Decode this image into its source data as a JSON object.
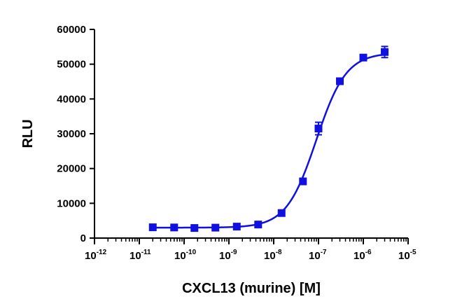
{
  "chart_data": {
    "type": "scatter",
    "xlabel": "CXCL13 (murine) [M]",
    "ylabel": "RLU",
    "xscale": "log",
    "xlim": [
      1e-12,
      1e-05
    ],
    "ylim": [
      0,
      60000
    ],
    "grid": false,
    "legend": "none",
    "color": "#1010e0",
    "x_ticks": [
      {
        "base": "10",
        "exp": "-12",
        "value": 1e-12
      },
      {
        "base": "10",
        "exp": "-11",
        "value": 1e-11
      },
      {
        "base": "10",
        "exp": "-10",
        "value": 1e-10
      },
      {
        "base": "10",
        "exp": "-9",
        "value": 1e-09
      },
      {
        "base": "10",
        "exp": "-8",
        "value": 1e-08
      },
      {
        "base": "10",
        "exp": "-7",
        "value": 1e-07
      },
      {
        "base": "10",
        "exp": "-6",
        "value": 1e-06
      },
      {
        "base": "10",
        "exp": "-5",
        "value": 1e-05
      }
    ],
    "y_ticks": [
      "0",
      "10000",
      "20000",
      "30000",
      "40000",
      "50000",
      "60000"
    ],
    "series": [
      {
        "x": [
          2e-11,
          6e-11,
          1.7e-10,
          5e-10,
          1.5e-09,
          4.5e-09,
          1.5e-08,
          4.5e-08,
          1e-07,
          3e-07,
          1e-06,
          3e-06
        ],
        "y": [
          3100,
          3050,
          2900,
          3000,
          3300,
          3900,
          7200,
          16300,
          31500,
          45100,
          51900,
          53500
        ],
        "error": [
          500,
          400,
          300,
          400,
          400,
          500,
          800,
          800,
          1800,
          600,
          800,
          1600
        ]
      }
    ],
    "fit_curve": {
      "model": "4-parameter logistic",
      "bottom": 3000,
      "top": 53300,
      "log_ec50": -7.05,
      "hill_slope": 1.3
    }
  }
}
